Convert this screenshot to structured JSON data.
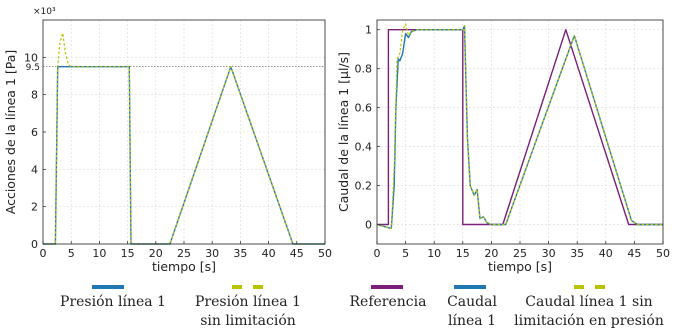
{
  "chart_data": [
    {
      "type": "line",
      "ylabel": "Acciones de la línea 1 [Pa]",
      "xlabel": "tiempo [s]",
      "y_multiplier": "×10³",
      "xlim": [
        0,
        50
      ],
      "ylim": [
        0,
        12
      ],
      "xticks": [
        "0",
        "5",
        "10",
        "15",
        "20",
        "25",
        "30",
        "35",
        "40",
        "45",
        "50"
      ],
      "yticks": [
        "0",
        "2",
        "4",
        "6",
        "8",
        "10"
      ],
      "reference_line": {
        "value": 9.5,
        "label": "9.5",
        "style": "dotted"
      },
      "grid": true,
      "series": [
        {
          "name": "Presión línea 1",
          "color": "#1f77b4",
          "x": [
            0,
            2.2,
            2.6,
            3.0,
            15.3,
            15.6,
            16.0,
            22.5,
            33.3,
            44.3,
            45.2,
            50
          ],
          "y": [
            0,
            0,
            9.5,
            9.5,
            9.5,
            0,
            0,
            0,
            9.5,
            0,
            0,
            0
          ]
        },
        {
          "name": "Presión línea 1 sin limitación",
          "color": "#b8c400",
          "style": "dashed",
          "x": [
            0,
            2.2,
            2.6,
            3.0,
            3.5,
            4.0,
            4.5,
            5.0,
            15.3,
            15.6,
            16.0,
            22.5,
            33.3,
            44.3,
            45.2,
            50
          ],
          "y": [
            0,
            0,
            9.5,
            10.8,
            11.3,
            10.2,
            9.6,
            9.5,
            9.5,
            0,
            0,
            0,
            9.5,
            0,
            0,
            0
          ]
        }
      ]
    },
    {
      "type": "line",
      "ylabel": "Caudal de la línea 1 [µl/s]",
      "xlabel": "tiempo [s]",
      "xlim": [
        0,
        50
      ],
      "ylim": [
        -0.1,
        1.05
      ],
      "xticks": [
        "0",
        "5",
        "10",
        "15",
        "20",
        "25",
        "30",
        "35",
        "40",
        "45",
        "50"
      ],
      "yticks": [
        "0",
        "0.2",
        "0.4",
        "0.6",
        "0.8",
        "1"
      ],
      "grid": true,
      "series": [
        {
          "name": "Referencia",
          "color": "#7a1f7a",
          "x": [
            0,
            2.0,
            2.0,
            15.0,
            15.0,
            22.0,
            33.0,
            44.0,
            50
          ],
          "y": [
            0,
            0,
            1,
            1,
            0,
            0,
            1,
            0,
            0
          ]
        },
        {
          "name": "Caudal línea 1",
          "color": "#1f77b4",
          "x": [
            0,
            2.5,
            3.0,
            3.3,
            3.7,
            4.0,
            4.5,
            5.0,
            5.5,
            6.0,
            7.0,
            15.0,
            15.3,
            15.8,
            16.3,
            17.0,
            17.5,
            18.0,
            18.6,
            19.2,
            20.0,
            22.5,
            34.5,
            44.5,
            45.5,
            50
          ],
          "y": [
            0,
            -0.02,
            0.2,
            0.6,
            0.85,
            0.84,
            0.88,
            0.98,
            0.96,
            0.99,
            1.0,
            1.0,
            1.02,
            0.45,
            0.2,
            0.15,
            0.18,
            0.03,
            0.04,
            0.01,
            0.0,
            0.0,
            0.97,
            0.02,
            0.0,
            0.0
          ]
        },
        {
          "name": "Caudal línea 1 sin limitación en presión",
          "color": "#b8c400",
          "style": "dashed",
          "x": [
            0,
            2.5,
            3.0,
            3.5,
            4.0,
            4.5,
            5.0,
            5.5,
            6.0,
            7.0,
            15.0,
            15.3,
            15.8,
            16.3,
            17.0,
            17.5,
            18.0,
            18.6,
            19.2,
            20.0,
            22.5,
            34.5,
            44.5,
            45.5,
            50
          ],
          "y": [
            0,
            -0.02,
            0.3,
            0.85,
            0.88,
            1.0,
            1.03,
            0.97,
            0.99,
            1.0,
            1.0,
            1.02,
            0.45,
            0.2,
            0.15,
            0.18,
            0.03,
            0.04,
            0.01,
            0.0,
            0.0,
            0.97,
            0.02,
            0.0,
            0.0
          ]
        }
      ]
    }
  ],
  "legend_left": [
    {
      "label": "Presión línea 1",
      "label2": "",
      "color": "#1f77b4",
      "style": "solid"
    },
    {
      "label": "Presión línea 1",
      "label2": "sin limitación",
      "color": "#b8c400",
      "style": "dashed"
    }
  ],
  "legend_right": [
    {
      "label": "Referencia",
      "label2": "",
      "color": "#7a1f7a",
      "style": "solid"
    },
    {
      "label": "Caudal",
      "label2": "línea 1",
      "color": "#1f77b4",
      "style": "solid"
    },
    {
      "label": "Caudal línea 1 sin",
      "label2": "limitación en presión",
      "color": "#b8c400",
      "style": "dashed"
    }
  ]
}
